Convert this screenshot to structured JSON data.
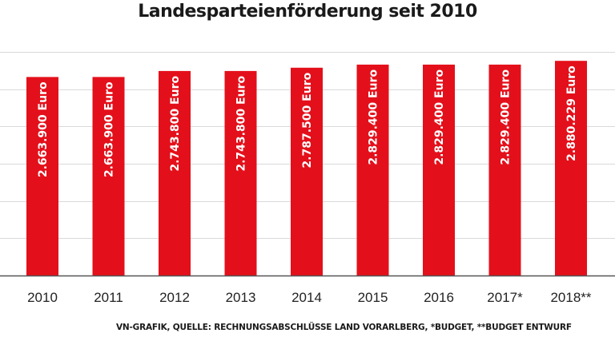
{
  "chart_data": {
    "type": "bar",
    "title": "Landesparteienförderung seit 2010",
    "xlabel": "",
    "ylabel": "",
    "categories": [
      "2010",
      "2011",
      "2012",
      "2013",
      "2014",
      "2015",
      "2016",
      "2017*",
      "2018**"
    ],
    "values": [
      2663900,
      2663900,
      2743800,
      2743800,
      2787500,
      2829400,
      2829400,
      2829400,
      2880229
    ],
    "data_labels": [
      "2.663.900 Euro",
      "2.663.900 Euro",
      "2.743.800 Euro",
      "2.743.800 Euro",
      "2.787.500 Euro",
      "2.829.400 Euro",
      "2.829.400 Euro",
      "2.829.400 Euro",
      "2.880.229 Euro"
    ],
    "ylim": [
      0,
      3000000
    ],
    "grid": true,
    "legend": "none",
    "bar_color": "#e3101b",
    "grid_color": "#d9d9d9",
    "axis_color": "#555555"
  },
  "footer": {
    "source": "VN-GRAFIK, QUELLE: RECHNUNGSABSCHLÜSSE LAND VORARLBERG, *BUDGET, **BUDGET ENTWURF"
  }
}
